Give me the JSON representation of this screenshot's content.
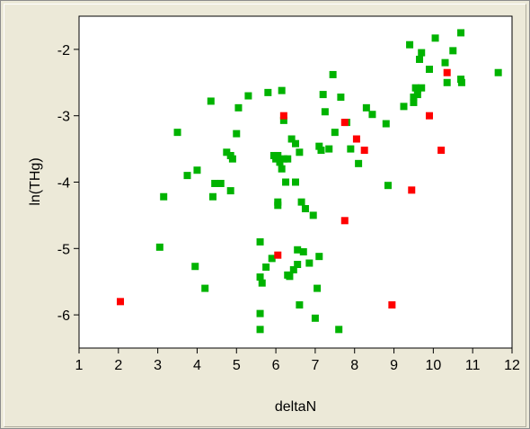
{
  "chart_data": {
    "type": "scatter",
    "title": "",
    "xlabel": "deltaN",
    "ylabel": "ln(THg)",
    "xlim": [
      1,
      12
    ],
    "ylim": [
      -6.5,
      -1.5
    ],
    "xticks": [
      1,
      2,
      3,
      4,
      5,
      6,
      7,
      8,
      9,
      10,
      11,
      12
    ],
    "yticks": [
      -6,
      -5,
      -4,
      -3,
      -2
    ],
    "grid": false,
    "legend": "none",
    "series": [
      {
        "color": "#00b300",
        "points": [
          [
            3.05,
            -4.98
          ],
          [
            3.15,
            -4.22
          ],
          [
            3.5,
            -3.25
          ],
          [
            3.75,
            -3.9
          ],
          [
            3.95,
            -5.27
          ],
          [
            4.0,
            -3.82
          ],
          [
            4.2,
            -5.6
          ],
          [
            4.35,
            -2.78
          ],
          [
            4.4,
            -4.22
          ],
          [
            4.45,
            -4.02
          ],
          [
            4.6,
            -4.02
          ],
          [
            4.75,
            -3.55
          ],
          [
            4.85,
            -3.6
          ],
          [
            4.85,
            -4.13
          ],
          [
            4.9,
            -3.65
          ],
          [
            5.0,
            -3.27
          ],
          [
            5.05,
            -2.88
          ],
          [
            5.3,
            -2.7
          ],
          [
            5.6,
            -4.9
          ],
          [
            5.6,
            -5.43
          ],
          [
            5.65,
            -5.52
          ],
          [
            5.6,
            -5.98
          ],
          [
            5.6,
            -6.22
          ],
          [
            5.75,
            -5.28
          ],
          [
            5.8,
            -2.65
          ],
          [
            5.9,
            -5.15
          ],
          [
            5.95,
            -3.6
          ],
          [
            6.0,
            -3.65
          ],
          [
            6.05,
            -4.3
          ],
          [
            6.05,
            -4.35
          ],
          [
            6.05,
            -3.6
          ],
          [
            6.1,
            -3.7
          ],
          [
            6.15,
            -2.62
          ],
          [
            6.15,
            -3.8
          ],
          [
            6.2,
            -3.65
          ],
          [
            6.2,
            -3.07
          ],
          [
            6.25,
            -4.0
          ],
          [
            6.3,
            -3.65
          ],
          [
            6.3,
            -5.4
          ],
          [
            6.35,
            -5.42
          ],
          [
            6.4,
            -3.35
          ],
          [
            6.45,
            -5.32
          ],
          [
            6.5,
            -3.42
          ],
          [
            6.5,
            -4.0
          ],
          [
            6.55,
            -5.02
          ],
          [
            6.55,
            -5.24
          ],
          [
            6.6,
            -3.55
          ],
          [
            6.6,
            -5.85
          ],
          [
            6.65,
            -4.3
          ],
          [
            6.7,
            -5.05
          ],
          [
            6.75,
            -4.4
          ],
          [
            6.85,
            -5.22
          ],
          [
            6.95,
            -4.5
          ],
          [
            7.0,
            -6.05
          ],
          [
            7.05,
            -5.6
          ],
          [
            7.1,
            -3.46
          ],
          [
            7.1,
            -5.12
          ],
          [
            7.15,
            -3.52
          ],
          [
            7.2,
            -2.68
          ],
          [
            7.25,
            -2.94
          ],
          [
            7.35,
            -3.5
          ],
          [
            7.45,
            -2.38
          ],
          [
            7.5,
            -3.25
          ],
          [
            7.6,
            -6.22
          ],
          [
            7.65,
            -2.72
          ],
          [
            7.8,
            -3.1
          ],
          [
            7.9,
            -3.5
          ],
          [
            8.1,
            -3.72
          ],
          [
            8.3,
            -2.88
          ],
          [
            8.45,
            -2.98
          ],
          [
            8.8,
            -3.12
          ],
          [
            8.85,
            -4.05
          ],
          [
            9.25,
            -2.86
          ],
          [
            9.4,
            -1.93
          ],
          [
            9.5,
            -2.8
          ],
          [
            9.5,
            -2.72
          ],
          [
            9.55,
            -2.58
          ],
          [
            9.6,
            -2.6
          ],
          [
            9.6,
            -2.68
          ],
          [
            9.65,
            -2.15
          ],
          [
            9.7,
            -2.05
          ],
          [
            9.7,
            -2.58
          ],
          [
            9.9,
            -2.3
          ],
          [
            10.05,
            -1.83
          ],
          [
            10.3,
            -2.2
          ],
          [
            10.35,
            -2.5
          ],
          [
            10.5,
            -2.02
          ],
          [
            10.7,
            -1.75
          ],
          [
            10.7,
            -2.45
          ],
          [
            10.72,
            -2.5
          ],
          [
            11.65,
            -2.35
          ]
        ]
      },
      {
        "color": "#ff0000",
        "points": [
          [
            2.05,
            -5.8
          ],
          [
            6.05,
            -5.1
          ],
          [
            6.2,
            -3.0
          ],
          [
            7.75,
            -3.1
          ],
          [
            7.75,
            -4.58
          ],
          [
            8.05,
            -3.35
          ],
          [
            8.25,
            -3.52
          ],
          [
            8.95,
            -5.85
          ],
          [
            9.45,
            -4.12
          ],
          [
            9.9,
            -3.0
          ],
          [
            10.2,
            -3.52
          ],
          [
            10.35,
            -2.35
          ]
        ]
      }
    ]
  }
}
